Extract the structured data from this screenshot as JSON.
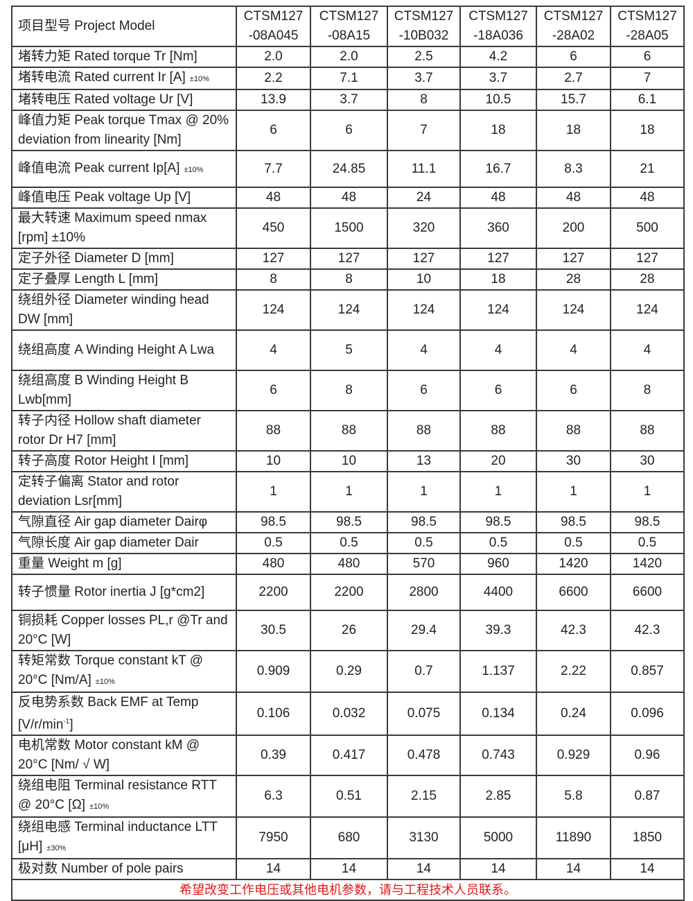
{
  "header": {
    "label": "项目型号 Project Model",
    "models": [
      [
        "CTSM127",
        "-08A045"
      ],
      [
        "CTSM127",
        "-08A15"
      ],
      [
        "CTSM127",
        "-10B032"
      ],
      [
        "CTSM127",
        "-18A036"
      ],
      [
        "CTSM127",
        "-28A02"
      ],
      [
        "CTSM127",
        "-28A05"
      ]
    ]
  },
  "rows": [
    {
      "label": "堵转力矩 Rated torque Tr   [Nm]",
      "values": [
        "2.0",
        "2.0",
        "2.5",
        "4.2",
        "6",
        "6"
      ]
    },
    {
      "label": "堵转电流 Rated current Ir [A]",
      "small": "±10%",
      "values": [
        "2.2",
        "7.1",
        "3.7",
        "3.7",
        "2.7",
        "7"
      ]
    },
    {
      "label": "堵转电压 Rated voltage Ur [V]",
      "values": [
        "13.9",
        "3.7",
        "8",
        "10.5",
        "15.7",
        "6.1"
      ]
    },
    {
      "label": "峰值力矩 Peak torque Tmax @ 20% deviation from linearity [Nm]",
      "values": [
        "6",
        "6",
        "7",
        "18",
        "18",
        "18"
      ]
    },
    {
      "label": "峰值电流 Peak current Ip[A]",
      "small": "±10%",
      "values": [
        "7.7",
        "24.85",
        "11.1",
        "16.7",
        "8.3",
        "21"
      ]
    },
    {
      "label": "峰值电压 Peak voltage Up [V]",
      "values": [
        "48",
        "48",
        "24",
        "48",
        "48",
        "48"
      ]
    },
    {
      "label": "最大转速  Maximum speed nmax [rpm] ±10%",
      "values": [
        "450",
        "1500",
        "320",
        "360",
        "200",
        "500"
      ]
    },
    {
      "label": "定子外径 Diameter D [mm]",
      "values": [
        "127",
        "127",
        "127",
        "127",
        "127",
        "127"
      ]
    },
    {
      "label": "定子叠厚 Length L [mm]",
      "values": [
        "8",
        "8",
        "10",
        "18",
        "28",
        "28"
      ]
    },
    {
      "label": "绕组外径 Diameter winding head DW [mm]",
      "values": [
        "124",
        "124",
        "124",
        "124",
        "124",
        "124"
      ]
    },
    {
      "label": "绕组高度 A Winding Height A Lwa",
      "values": [
        "4",
        "5",
        "4",
        "4",
        "4",
        "4"
      ]
    },
    {
      "label": "绕组高度 B Winding Height B Lwb[mm]",
      "values": [
        "6",
        "8",
        "6",
        "6",
        "6",
        "8"
      ]
    },
    {
      "label": "转子内径 Hollow shaft diameter rotor Dr H7 [mm]",
      "values": [
        "88",
        "88",
        "88",
        "88",
        "88",
        "88"
      ]
    },
    {
      "label": "转子高度 Rotor Height I [mm]",
      "values": [
        "10",
        "10",
        "13",
        "20",
        "30",
        "30"
      ]
    },
    {
      "label": "定转子偏离 Stator and rotor deviation Lsr[mm]",
      "values": [
        "1",
        "1",
        "1",
        "1",
        "1",
        "1"
      ]
    },
    {
      "label": "气隙直径  Air gap diameter Dairφ",
      "values": [
        "98.5",
        "98.5",
        "98.5",
        "98.5",
        "98.5",
        "98.5"
      ]
    },
    {
      "label": "气隙长度  Air gap diameter Dair",
      "values": [
        "0.5",
        "0.5",
        "0.5",
        "0.5",
        "0.5",
        "0.5"
      ]
    },
    {
      "label": "重量 Weight m [g]",
      "values": [
        "480",
        "480",
        "570",
        "960",
        "1420",
        "1420"
      ]
    },
    {
      "label": "转子惯量 Rotor inertia J [g*cm2]",
      "values": [
        "2200",
        "2200",
        "2800",
        "4400",
        "6600",
        "6600"
      ]
    },
    {
      "label": "铜损耗 Copper losses PL,r @Tr and 20°C [W]",
      "values": [
        "30.5",
        "26",
        "29.4",
        "39.3",
        "42.3",
        "42.3"
      ]
    },
    {
      "label": "转矩常数 Torque constant kT @ 20°C [Nm/A]",
      "small": "±10%",
      "values": [
        "0.909",
        "0.29",
        "0.7",
        "1.137",
        "2.22",
        "0.857"
      ]
    },
    {
      "label": "反电势系数 Back EMF at Temp [V/r/min",
      "sup": "-1",
      "tail": "]",
      "values": [
        "0.106",
        "0.032",
        "0.075",
        "0.134",
        "0.24",
        "0.096"
      ]
    },
    {
      "label": "电机常数 Motor constant kM @ 20°C [Nm/ √ W]",
      "values": [
        "0.39",
        "0.417",
        "0.478",
        "0.743",
        "0.929",
        "0.96"
      ]
    },
    {
      "label": "绕组电阻 Terminal resistance RTT @ 20°C [Ω]",
      "small": "±10%",
      "values": [
        "6.3",
        "0.51",
        "2.15",
        "2.85",
        "5.8",
        "0.87"
      ]
    },
    {
      "label": "绕组电感 Terminal inductance LTT [μH]",
      "small": "±30%",
      "values": [
        "7950",
        "680",
        "3130",
        "5000",
        "11890",
        "1850"
      ]
    },
    {
      "label": "极对数 Number of pole pairs",
      "values": [
        "14",
        "14",
        "14",
        "14",
        "14",
        "14"
      ]
    }
  ],
  "footer": "希望改变工作电压或其他电机参数，请与工程技术人员联系。",
  "colors": {
    "footer_text": "#e01818",
    "border": "#3a3a3a"
  }
}
